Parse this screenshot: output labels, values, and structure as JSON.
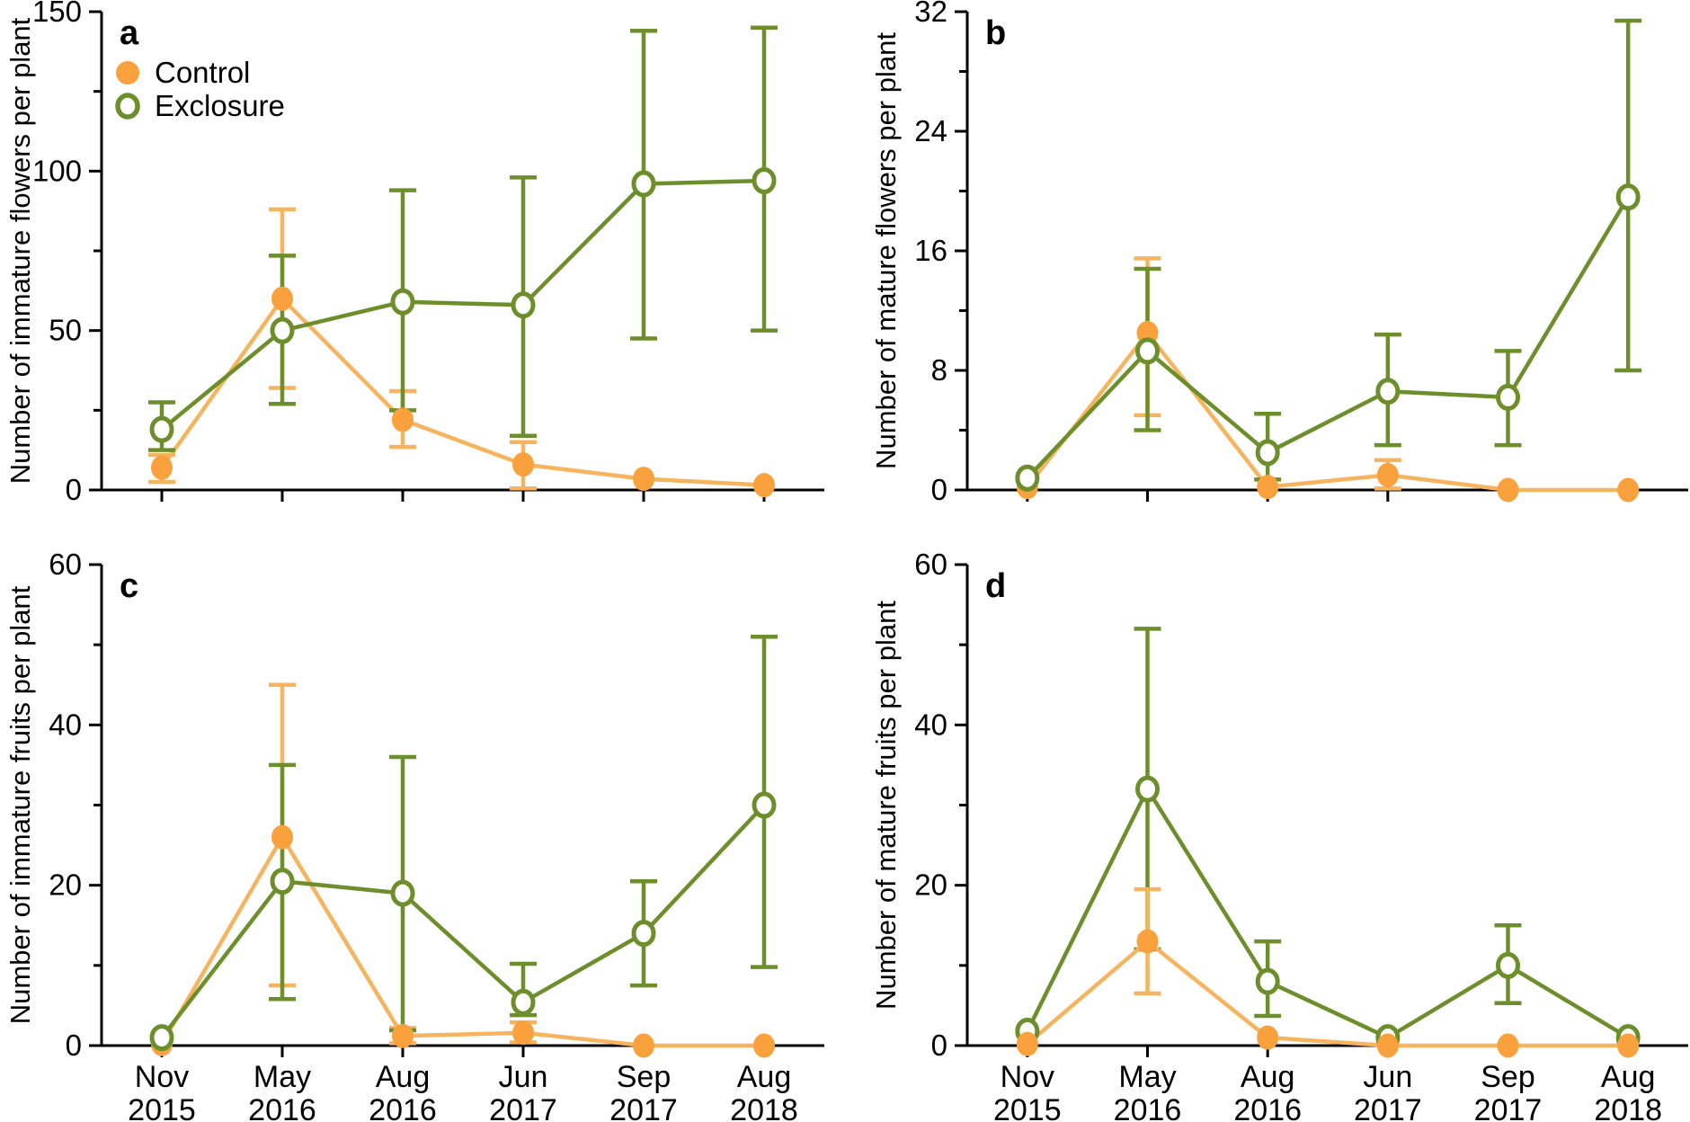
{
  "colors": {
    "control_marker": "#F9A13C",
    "control_line": "#F6B45F",
    "exclosure": "#6D8F2B",
    "axis": "#000000",
    "background": "#FFFFFF"
  },
  "legend": {
    "control_label": "Control",
    "exclosure_label": "Exclosure"
  },
  "x_categories": [
    [
      "Nov",
      "2015"
    ],
    [
      "May",
      "2016"
    ],
    [
      "Aug",
      "2016"
    ],
    [
      "Jun",
      "2017"
    ],
    [
      "Sep",
      "2017"
    ],
    [
      "Aug",
      "2018"
    ]
  ],
  "chart_data": [
    {
      "id": "a",
      "type": "line",
      "panel_label": "a",
      "ylabel": "Number of immature flowers per plant",
      "ylim": [
        0,
        150
      ],
      "yticks": [
        0,
        50,
        100,
        150
      ],
      "yminor_ticks": [
        25,
        75,
        125
      ],
      "grid": false,
      "legend": true,
      "legend_position": "top-left-inside",
      "show_x_labels": false,
      "series": [
        {
          "name": "Control",
          "marker": "filled",
          "color_key": "control",
          "values": [
            7,
            60,
            22,
            8,
            3.5,
            1.5
          ],
          "err_lo": [
            2.5,
            32,
            13.5,
            0.5,
            3.5,
            1.5
          ],
          "err_hi": [
            11,
            88,
            31,
            15,
            3.5,
            1.5
          ]
        },
        {
          "name": "Exclosure",
          "marker": "open",
          "color_key": "exclosure",
          "values": [
            19,
            50,
            59,
            58,
            96,
            97
          ],
          "err_lo": [
            12.5,
            27,
            25,
            17,
            47.5,
            50
          ],
          "err_hi": [
            27.5,
            73.5,
            94,
            98,
            144,
            145
          ]
        }
      ]
    },
    {
      "id": "b",
      "type": "line",
      "panel_label": "b",
      "ylabel": "Number of mature flowers per plant",
      "ylim": [
        0,
        32
      ],
      "yticks": [
        0,
        8,
        16,
        24,
        32
      ],
      "yminor_ticks": [
        4,
        12,
        20,
        28
      ],
      "grid": false,
      "legend": false,
      "show_x_labels": false,
      "series": [
        {
          "name": "Control",
          "marker": "filled",
          "color_key": "control",
          "values": [
            0.2,
            10.5,
            0.2,
            1,
            0,
            0
          ],
          "err_lo": [
            0.2,
            5,
            0.2,
            0.1,
            0,
            0
          ],
          "err_hi": [
            0.2,
            15.5,
            0.2,
            2,
            0,
            0
          ]
        },
        {
          "name": "Exclosure",
          "marker": "open",
          "color_key": "exclosure",
          "values": [
            0.8,
            9.3,
            2.5,
            6.6,
            6.2,
            19.6
          ],
          "err_lo": [
            0.8,
            4,
            0.7,
            3,
            3,
            8
          ],
          "err_hi": [
            0.8,
            14.8,
            5.1,
            10.4,
            9.3,
            31.4
          ]
        }
      ]
    },
    {
      "id": "c",
      "type": "line",
      "panel_label": "c",
      "ylabel": "Number of immature fruits per plant",
      "ylim": [
        0,
        60
      ],
      "yticks": [
        0,
        20,
        40,
        60
      ],
      "yminor_ticks": [
        10,
        30,
        50
      ],
      "grid": false,
      "legend": false,
      "show_x_labels": true,
      "series": [
        {
          "name": "Control",
          "marker": "filled",
          "color_key": "control",
          "values": [
            0.2,
            26,
            1.2,
            1.6,
            0,
            0
          ],
          "err_lo": [
            0.2,
            7.5,
            0.3,
            0.4,
            0,
            0
          ],
          "err_hi": [
            0.2,
            45,
            2.2,
            2.9,
            0,
            0
          ]
        },
        {
          "name": "Exclosure",
          "marker": "open",
          "color_key": "exclosure",
          "values": [
            1,
            20.5,
            19,
            5.4,
            14,
            30
          ],
          "err_lo": [
            1,
            5.8,
            1.9,
            3.8,
            7.5,
            9.8
          ],
          "err_hi": [
            1,
            35,
            36,
            10.2,
            20.5,
            51
          ]
        }
      ]
    },
    {
      "id": "d",
      "type": "line",
      "panel_label": "d",
      "ylabel": "Number of mature fruits per plant",
      "ylim": [
        0,
        60
      ],
      "yticks": [
        0,
        20,
        40,
        60
      ],
      "yminor_ticks": [
        10,
        30,
        50
      ],
      "grid": false,
      "legend": false,
      "show_x_labels": true,
      "series": [
        {
          "name": "Exclosure",
          "marker": "open",
          "color_key": "exclosure",
          "values": [
            1.8,
            32,
            8,
            1,
            10,
            1
          ],
          "err_lo": [
            1.8,
            12,
            3.7,
            1,
            5.3,
            1
          ],
          "err_hi": [
            1.8,
            52,
            13,
            1,
            15,
            1
          ]
        },
        {
          "name": "Control",
          "marker": "filled",
          "color_key": "control",
          "values": [
            0.2,
            13,
            1,
            0,
            0,
            0
          ],
          "err_lo": [
            0.2,
            6.5,
            1,
            0,
            0,
            0
          ],
          "err_hi": [
            0.2,
            19.5,
            1,
            0,
            0,
            0
          ]
        }
      ]
    }
  ]
}
